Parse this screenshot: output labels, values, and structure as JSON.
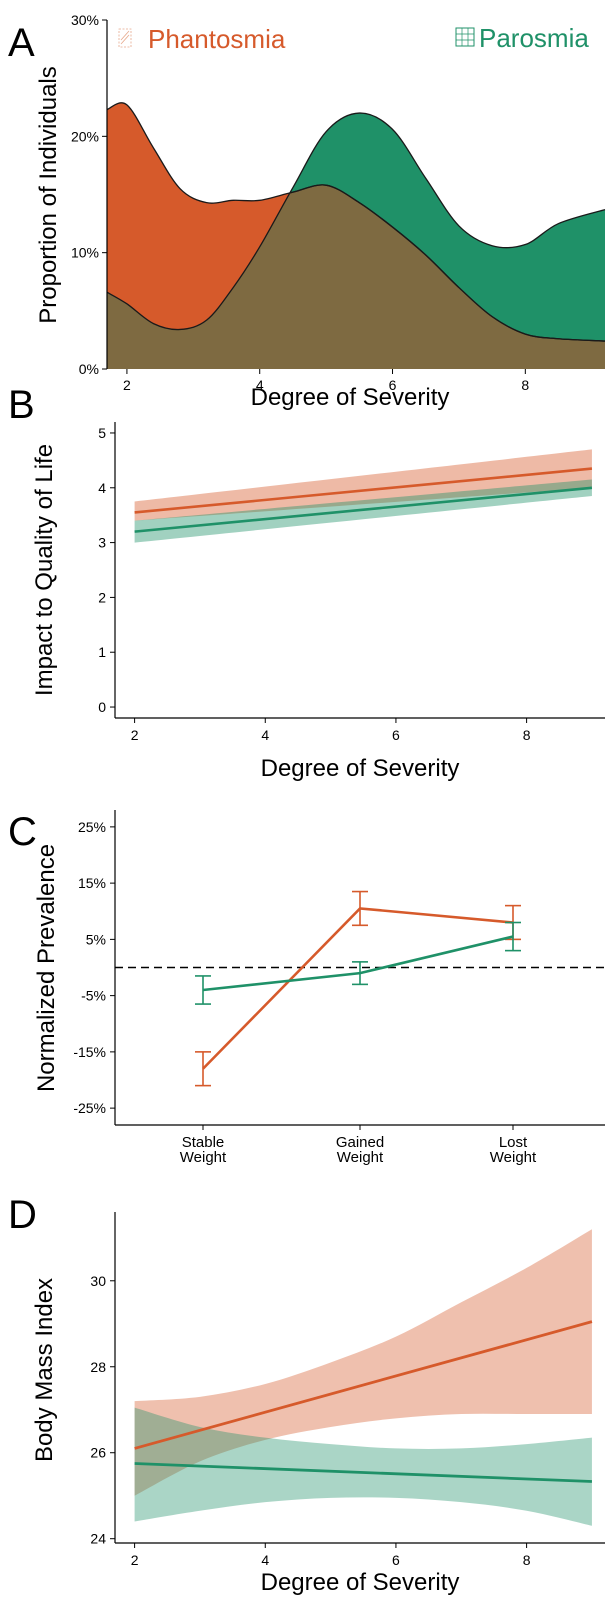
{
  "colors": {
    "phantosmia": "#d65a2b",
    "parosmia": "#1f9168",
    "overlap": "#7e6a41"
  },
  "legend": {
    "phantosmia_label": "Phantosmia",
    "parosmia_label": "Parosmia"
  },
  "chart_data": [
    {
      "panel": "A",
      "type": "area",
      "xlabel": "Degree of Severity",
      "ylabel": "Proportion of Individuals",
      "xlim": [
        1.7,
        9.2
      ],
      "ylim": [
        0,
        30
      ],
      "xticks": [
        2,
        4,
        6,
        8
      ],
      "yticks": [
        0,
        10,
        20,
        30
      ],
      "ytick_labels": [
        "0%",
        "10%",
        "20%",
        "30%"
      ],
      "series": [
        {
          "name": "Phantosmia",
          "color": "#d65a2b",
          "x": [
            1.7,
            2.0,
            2.4,
            2.8,
            3.2,
            3.6,
            4.0,
            4.5,
            5.0,
            5.5,
            6.0,
            6.5,
            7.0,
            7.5,
            8.0,
            8.5,
            9.2
          ],
          "y": [
            22.3,
            22.7,
            19.0,
            15.5,
            14.3,
            14.5,
            14.5,
            15.2,
            15.8,
            14.3,
            12.2,
            9.8,
            7.0,
            4.5,
            3.0,
            2.6,
            2.4
          ]
        },
        {
          "name": "Parosmia",
          "color": "#1f9168",
          "x": [
            1.7,
            2.0,
            2.4,
            2.8,
            3.2,
            3.6,
            4.0,
            4.5,
            5.0,
            5.5,
            6.0,
            6.5,
            7.0,
            7.5,
            8.0,
            8.5,
            9.2
          ],
          "y": [
            6.6,
            5.6,
            3.9,
            3.4,
            4.2,
            7.0,
            10.5,
            15.6,
            20.4,
            22.0,
            20.6,
            16.4,
            12.3,
            10.6,
            10.7,
            12.5,
            13.7
          ]
        }
      ]
    },
    {
      "panel": "B",
      "type": "line",
      "xlabel": "Degree of Severity",
      "ylabel": "Impact to Quality of Life",
      "xlim": [
        1.7,
        9.2
      ],
      "ylim": [
        -0.2,
        5.2
      ],
      "xticks": [
        2,
        4,
        6,
        8
      ],
      "yticks": [
        0,
        1,
        2,
        3,
        4,
        5
      ],
      "series": [
        {
          "name": "Phantosmia",
          "color": "#d65a2b",
          "x": [
            2,
            9
          ],
          "y": [
            3.55,
            4.35
          ],
          "lower": [
            3.4,
            4.0
          ],
          "upper": [
            3.75,
            4.7
          ]
        },
        {
          "name": "Parosmia",
          "color": "#1f9168",
          "x": [
            2,
            9
          ],
          "y": [
            3.2,
            4.0
          ],
          "lower": [
            3.0,
            3.85
          ],
          "upper": [
            3.4,
            4.15
          ]
        }
      ]
    },
    {
      "panel": "C",
      "type": "line",
      "ylabel": "Normalized Prevalence",
      "categories": [
        "Stable\nWeight",
        "Gained\nWeight",
        "Lost\nWeight"
      ],
      "ylim": [
        -28,
        28
      ],
      "yticks": [
        -25,
        -15,
        -5,
        5,
        15,
        25
      ],
      "ytick_labels": [
        "-25%",
        "-15%",
        "-5%",
        "5%",
        "15%",
        "25%"
      ],
      "reference_line": 0,
      "series": [
        {
          "name": "Phantosmia",
          "color": "#d65a2b",
          "values": [
            -18,
            10.5,
            8
          ],
          "err": [
            3.0,
            3.0,
            3.0
          ]
        },
        {
          "name": "Parosmia",
          "color": "#1f9168",
          "values": [
            -4,
            -1,
            5.5
          ],
          "err": [
            2.5,
            2.0,
            2.5
          ]
        }
      ]
    },
    {
      "panel": "D",
      "type": "line",
      "xlabel": "Degree of Severity",
      "ylabel": "Body Mass Index",
      "xlim": [
        1.7,
        9.2
      ],
      "ylim": [
        23.9,
        31.6
      ],
      "xticks": [
        2,
        4,
        6,
        8
      ],
      "yticks": [
        24,
        26,
        28,
        30
      ],
      "series": [
        {
          "name": "Phantosmia",
          "color": "#d65a2b",
          "x": [
            2,
            3,
            4,
            5,
            6,
            7,
            8,
            9
          ],
          "y": [
            26.1,
            26.5,
            26.95,
            27.35,
            27.75,
            28.2,
            28.6,
            29.05
          ],
          "lower": [
            25.0,
            25.8,
            26.3,
            26.6,
            26.8,
            26.9,
            26.9,
            26.9
          ],
          "upper": [
            27.2,
            27.3,
            27.6,
            28.1,
            28.7,
            29.5,
            30.3,
            31.2
          ]
        },
        {
          "name": "Parosmia",
          "color": "#1f9168",
          "x": [
            2,
            3,
            4,
            5,
            6,
            7,
            8,
            9
          ],
          "y": [
            25.75,
            25.69,
            25.63,
            25.57,
            25.51,
            25.45,
            25.39,
            25.33
          ],
          "lower": [
            24.4,
            24.65,
            24.85,
            24.95,
            24.95,
            24.85,
            24.65,
            24.3
          ],
          "upper": [
            27.05,
            26.6,
            26.35,
            26.2,
            26.1,
            26.1,
            26.2,
            26.35
          ]
        }
      ]
    }
  ]
}
